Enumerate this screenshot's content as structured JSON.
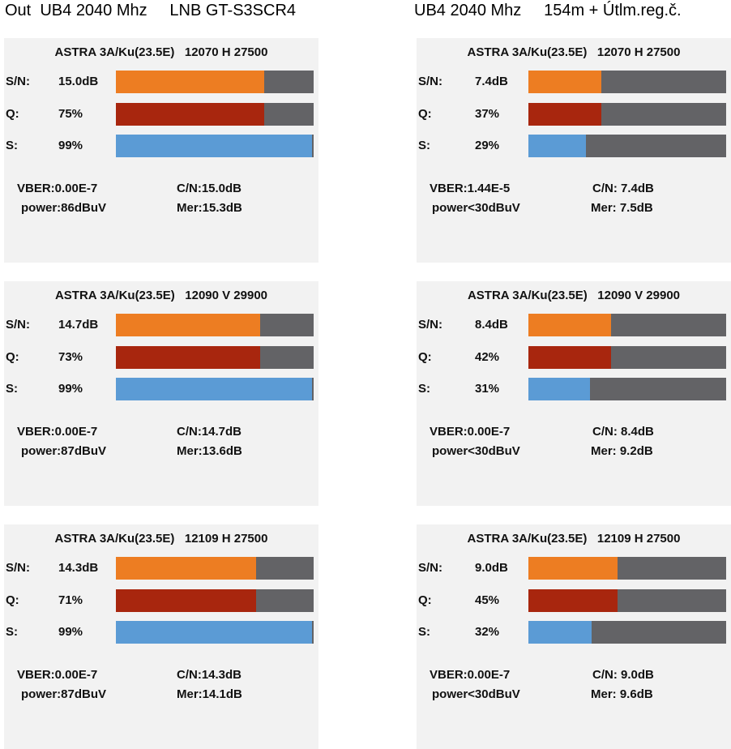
{
  "header": {
    "left": "Out  UB4 2040 Mhz     LNB GT-S3SCR4",
    "right": "UB4 2040 Mhz     154m + Útlm.reg.č."
  },
  "row_labels": [
    "S/N:",
    "Q:",
    "S:"
  ],
  "panels": [
    {
      "title": "ASTRA 3A/Ku(23.5E)   12070 H 27500",
      "sn": "15.0dB",
      "quality": {
        "value": 75,
        "label": "75%"
      },
      "strength": {
        "value": 99,
        "label": "99%"
      },
      "vber": "VBER:0.00E-7",
      "cn": "C/N:15.0dB",
      "power": "power:86dBuV",
      "mer": "Mer:15.3dB"
    },
    {
      "title": "ASTRA 3A/Ku(23.5E)   12070 H 27500",
      "sn": "7.4dB",
      "quality": {
        "value": 37,
        "label": "37%"
      },
      "strength": {
        "value": 29,
        "label": "29%"
      },
      "vber": "VBER:1.44E-5",
      "cn": "C/N: 7.4dB",
      "power": "power<30dBuV",
      "mer": "Mer: 7.5dB"
    },
    {
      "title": "ASTRA 3A/Ku(23.5E)   12090 V 29900",
      "sn": "14.7dB",
      "quality": {
        "value": 73,
        "label": "73%"
      },
      "strength": {
        "value": 99,
        "label": "99%"
      },
      "vber": "VBER:0.00E-7",
      "cn": "C/N:14.7dB",
      "power": "power:87dBuV",
      "mer": "Mer:13.6dB"
    },
    {
      "title": "ASTRA 3A/Ku(23.5E)   12090 V 29900",
      "sn": "8.4dB",
      "quality": {
        "value": 42,
        "label": "42%"
      },
      "strength": {
        "value": 31,
        "label": "31%"
      },
      "vber": "VBER:0.00E-7",
      "cn": "C/N: 8.4dB",
      "power": "power<30dBuV",
      "mer": "Mer: 9.2dB"
    },
    {
      "title": "ASTRA 3A/Ku(23.5E)   12109 H 27500",
      "sn": "14.3dB",
      "quality": {
        "value": 71,
        "label": "71%"
      },
      "strength": {
        "value": 99,
        "label": "99%"
      },
      "vber": "VBER:0.00E-7",
      "cn": "C/N:14.3dB",
      "power": "power:87dBuV",
      "mer": "Mer:14.1dB"
    },
    {
      "title": "ASTRA 3A/Ku(23.5E)   12109 H 27500",
      "sn": "9.0dB",
      "quality": {
        "value": 45,
        "label": "45%"
      },
      "strength": {
        "value": 32,
        "label": "32%"
      },
      "vber": "VBER:0.00E-7",
      "cn": "C/N: 9.0dB",
      "power": "power<30dBuV",
      "mer": "Mer: 9.6dB"
    }
  ]
}
